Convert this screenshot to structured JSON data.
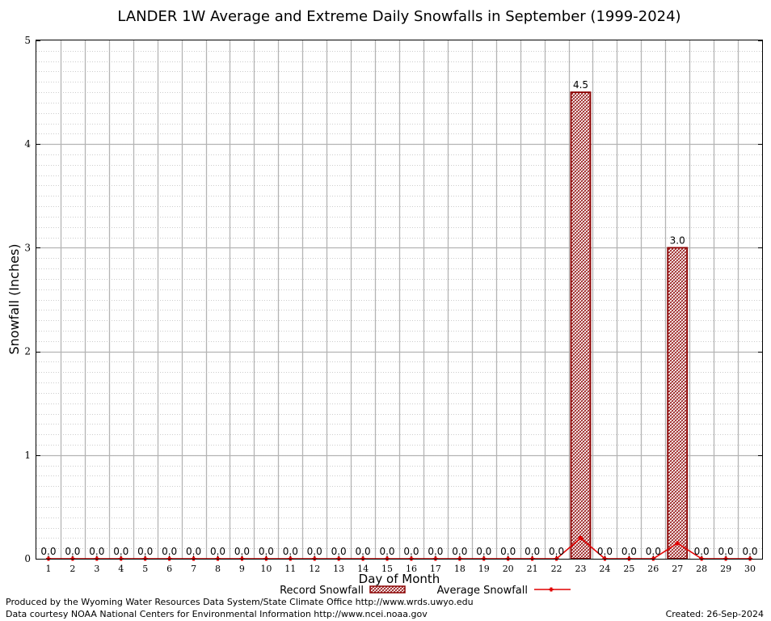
{
  "chart_data": {
    "type": "bar",
    "title": "LANDER 1W Average and Extreme Daily Snowfalls in September (1999-2024)",
    "xlabel": "Day of Month",
    "ylabel": "Snowfall (Inches)",
    "categories": [
      "1",
      "2",
      "3",
      "4",
      "5",
      "6",
      "7",
      "8",
      "9",
      "10",
      "11",
      "12",
      "13",
      "14",
      "15",
      "16",
      "17",
      "18",
      "19",
      "20",
      "21",
      "22",
      "23",
      "24",
      "25",
      "26",
      "27",
      "28",
      "29",
      "30"
    ],
    "y_ticks": [
      "0",
      "1",
      "2",
      "3",
      "4",
      "5"
    ],
    "ylim": [
      0,
      5
    ],
    "grid": true,
    "legend_position": "bottom",
    "series": [
      {
        "name": "Record Snowfall",
        "kind": "bar",
        "color": "#8b0000",
        "values": [
          0,
          0,
          0,
          0,
          0,
          0,
          0,
          0,
          0,
          0,
          0,
          0,
          0,
          0,
          0,
          0,
          0,
          0,
          0,
          0,
          0,
          0,
          4.5,
          0,
          0,
          0,
          3.0,
          0,
          0,
          0
        ],
        "labels": [
          "0.0",
          "0.0",
          "0.0",
          "0.0",
          "0.0",
          "0.0",
          "0.0",
          "0.0",
          "0.0",
          "0.0",
          "0.0",
          "0.0",
          "0.0",
          "0.0",
          "0.0",
          "0.0",
          "0.0",
          "0.0",
          "0.0",
          "0.0",
          "0.0",
          "0.0",
          "4.5",
          "0.0",
          "0.0",
          "0.0",
          "3.0",
          "0.0",
          "0.0",
          "0.0"
        ]
      },
      {
        "name": "Average Snowfall",
        "kind": "line",
        "color": "#e00000",
        "values": [
          0,
          0,
          0,
          0,
          0,
          0,
          0,
          0,
          0,
          0,
          0,
          0,
          0,
          0,
          0,
          0,
          0,
          0,
          0,
          0,
          0,
          0,
          0.2,
          0,
          0,
          0,
          0.15,
          0,
          0,
          0
        ]
      }
    ]
  },
  "footer": {
    "produced_by": "Produced by the Wyoming Water Resources Data System/State Climate Office http://www.wrds.uwyo.edu",
    "data_courtesy": "Data courtesy NOAA National Centers for Environmental Information http://www.ncei.noaa.gov",
    "created": "Created:  26-Sep-2024"
  }
}
